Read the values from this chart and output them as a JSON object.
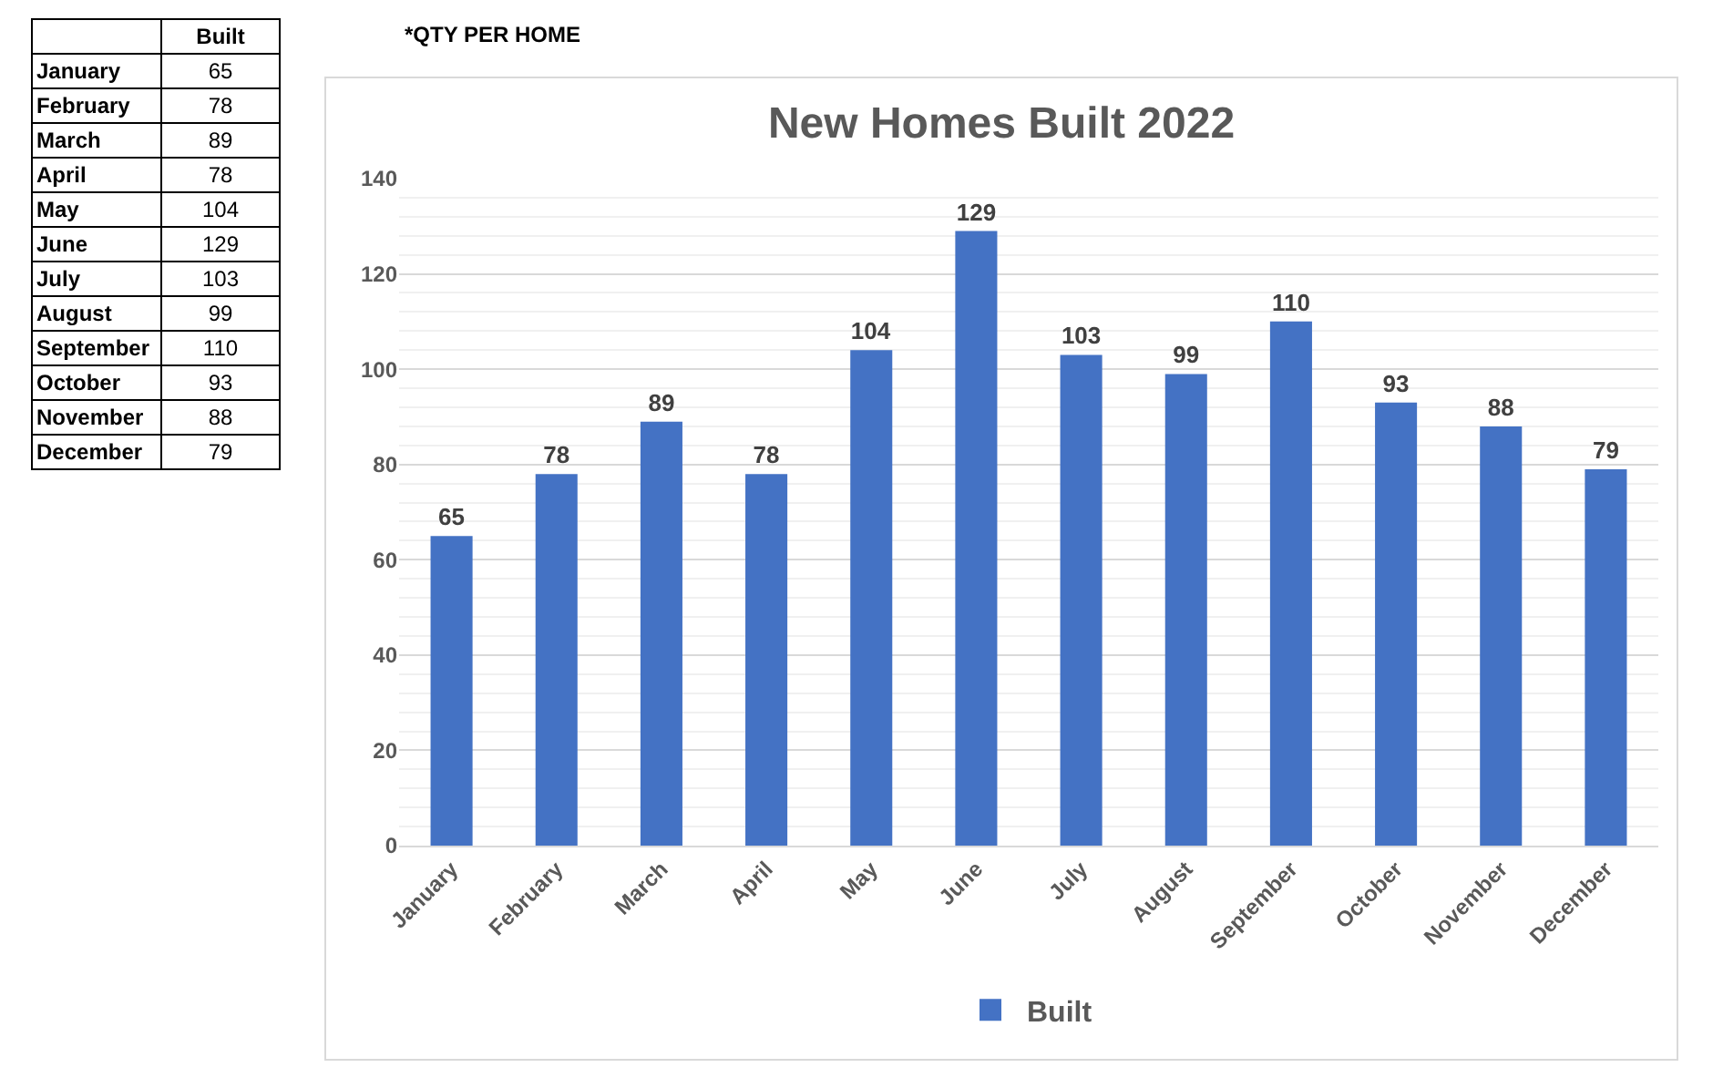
{
  "chart_data": [
    {
      "type": "other",
      "categories": [
        "January",
        "February",
        "March",
        "April",
        "May",
        "June",
        "July",
        "August",
        "September",
        "October",
        "November",
        "December"
      ],
      "series": [
        {
          "name": "Built",
          "values": [
            65,
            78,
            89,
            78,
            104,
            129,
            103,
            99,
            110,
            93,
            88,
            79
          ]
        }
      ],
      "data_labels": true
    },
    {
      "type": "bar",
      "title": "New Homes Built 2022",
      "categories": [
        "January",
        "February",
        "March",
        "April",
        "May",
        "June",
        "July",
        "August",
        "September",
        "October",
        "November",
        "December"
      ],
      "series": [
        {
          "name": "Built",
          "color": "#4472c4",
          "values": [
            65,
            78,
            89,
            78,
            104,
            129,
            103,
            99,
            110,
            93,
            88,
            79
          ]
        }
      ],
      "ylim": [
        0,
        140
      ],
      "yticks": [
        0,
        20,
        40,
        60,
        80,
        100,
        120,
        140
      ],
      "grid": "y",
      "legend": "bottom",
      "data_labels": true,
      "annotations": [
        "*QTY PER HOME"
      ]
    }
  ]
}
